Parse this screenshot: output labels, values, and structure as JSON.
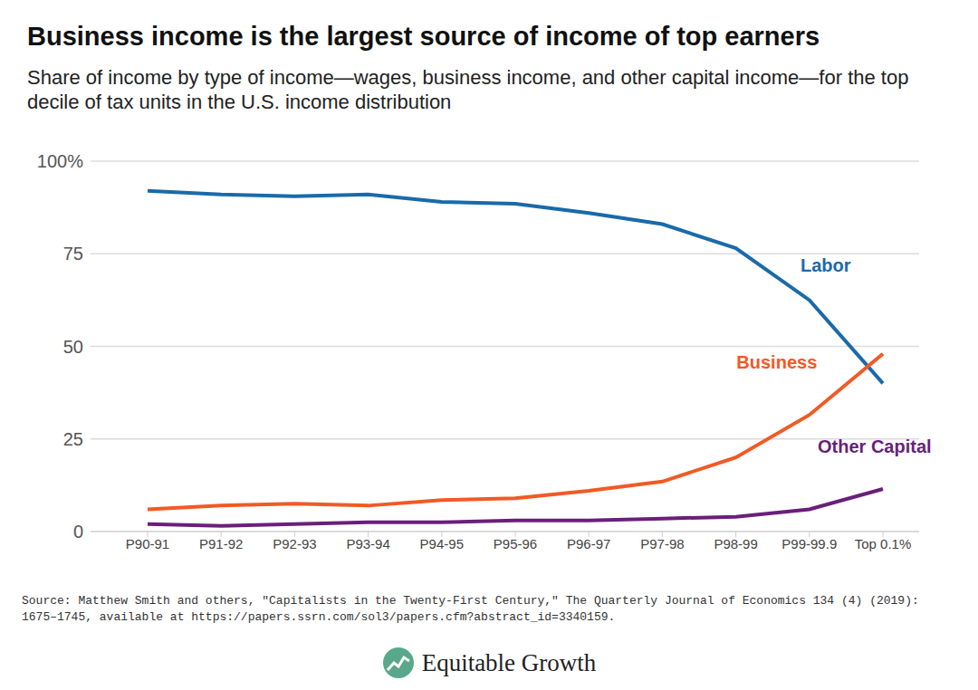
{
  "chart_data": {
    "type": "line",
    "title": "Business income is the largest source of income of top earners",
    "subtitle": "Share of income by type of income—wages, business income, and other capital income—for the top decile of tax units in the U.S. income distribution",
    "categories": [
      "P90-91",
      "P91-92",
      "P92-93",
      "P93-94",
      "P94-95",
      "P95-96",
      "P96-97",
      "P97-98",
      "P98-99",
      "P99-99.9",
      "Top 0.1%"
    ],
    "series": [
      {
        "name": "Labor",
        "color": "#1a6aa9",
        "values": [
          92,
          91,
          90.5,
          91,
          89,
          88.5,
          86,
          83,
          76.5,
          62.5,
          40
        ]
      },
      {
        "name": "Business",
        "color": "#f15a24",
        "values": [
          6,
          7,
          7.5,
          7,
          8.5,
          9,
          11,
          13.5,
          20,
          31.5,
          48
        ]
      },
      {
        "name": "Other Capital",
        "color": "#6a1f7a",
        "values": [
          2,
          1.5,
          2,
          2.5,
          2.5,
          3,
          3,
          3.5,
          4,
          6,
          11.5
        ]
      }
    ],
    "ylim": [
      0,
      100
    ],
    "yticks": [
      0,
      25,
      50,
      75,
      {
        "value": 100,
        "label": "100%"
      }
    ],
    "grid": true,
    "source": "Source: Matthew Smith and others, \"Capitalists in the Twenty-First Century,\" The Quarterly Journal of Economics 134 (4) (2019): 1675–1745, available at https://papers.ssrn.com/sol3/papers.cfm?abstract_id=3340159.",
    "logo_text": "Equitable Growth"
  }
}
